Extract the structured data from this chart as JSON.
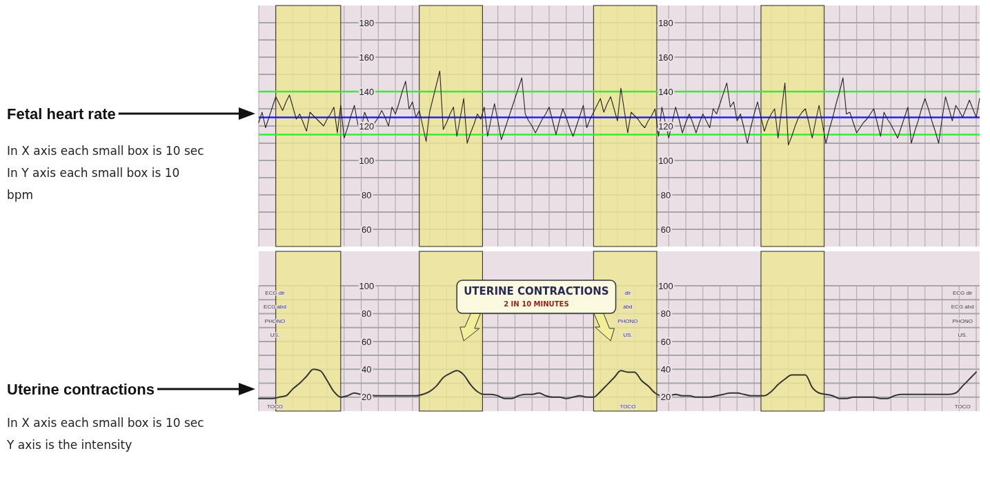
{
  "chart_data": [
    {
      "type": "line",
      "ylabel": "Fetal heart rate",
      "annotations": [
        "In X axis each small box is 10 sec",
        "In Y axis each small box is 10 bpm"
      ],
      "categories": [
        null,
        null,
        null,
        null,
        null,
        null,
        null,
        null,
        null,
        null,
        null,
        null,
        null,
        null,
        null,
        null,
        null,
        null,
        null,
        null,
        null,
        null,
        null,
        null,
        null,
        null,
        null,
        null,
        null,
        null,
        null,
        null,
        null,
        null,
        null,
        null,
        null,
        null,
        null,
        null,
        null,
        null,
        null,
        null,
        null,
        null,
        null,
        null,
        null,
        null,
        null,
        null,
        null,
        null,
        null,
        null,
        null,
        null,
        null,
        null,
        null,
        null,
        null,
        null,
        null,
        null,
        null,
        null,
        null,
        null,
        null,
        null,
        null,
        null,
        null,
        null,
        null,
        null,
        null,
        null,
        null,
        null,
        null,
        null,
        null,
        null,
        null,
        null,
        null,
        null,
        null,
        null,
        null,
        null,
        null,
        null,
        null,
        null,
        null,
        null,
        null,
        null,
        null,
        null,
        null,
        null,
        null,
        null,
        null,
        null,
        null,
        null,
        null,
        null,
        null,
        null,
        null,
        null,
        null,
        null,
        null,
        null,
        null,
        null,
        null,
        null,
        null,
        null,
        null,
        null,
        null,
        null,
        null,
        null,
        null,
        null,
        null,
        null,
        null,
        null,
        null,
        null,
        null,
        null,
        null,
        null,
        null,
        null,
        null,
        null,
        null,
        null,
        null,
        null,
        null,
        null,
        null,
        null,
        null,
        null,
        null,
        null,
        null,
        null,
        null,
        null,
        null,
        null,
        null,
        null,
        null,
        null,
        null,
        null,
        null,
        null,
        null,
        null,
        null,
        null,
        null,
        null,
        null,
        null,
        null,
        null,
        null,
        null,
        null,
        null,
        null,
        null,
        null,
        null,
        null,
        null,
        null,
        null,
        null,
        null,
        null,
        null,
        null,
        null,
        null,
        null,
        null,
        null,
        null,
        null,
        null,
        null
      ],
      "ylim": [
        50,
        190
      ],
      "tick_labels": "y",
      "grid": true,
      "yticks": [
        60,
        {
          "value": 70,
          "label": null
        },
        80,
        {
          "value": 90,
          "label": null
        },
        100,
        {
          "value": 110,
          "label": null
        },
        120,
        {
          "value": 130,
          "label": null
        },
        140,
        {
          "value": 150,
          "label": null
        },
        160,
        {
          "value": 170,
          "label": null
        },
        180
      ],
      "y2lim": [
        50,
        190
      ],
      "y2ticks": [
        60,
        80,
        100,
        120,
        140,
        160,
        180
      ],
      "ref_lines": [
        {
          "axis": "y",
          "value": 140,
          "color": "#33ee33"
        },
        {
          "axis": "y",
          "value": 125,
          "color": "#1f1fff"
        },
        {
          "axis": "y",
          "value": 115,
          "color": "#33ee33"
        }
      ],
      "series": [
        {
          "color": "#222222",
          "values": [
            122,
            128,
            119,
            125,
            131,
            137,
            133,
            129,
            134,
            138,
            131,
            124,
            127,
            122,
            117,
            128,
            126,
            124,
            122,
            120,
            124,
            127,
            131,
            116,
            132,
            113,
            119,
            126,
            132,
            121,
            119,
            128,
            123,
            118,
            122,
            125,
            129,
            125,
            120,
            131,
            127,
            133,
            140,
            146,
            130,
            134,
            125,
            129,
            120,
            111,
            128,
            136,
            144,
            152,
            118,
            122,
            127,
            131,
            114,
            125,
            136,
            110,
            116,
            121,
            127,
            124,
            131,
            114,
            124,
            133,
            123,
            112,
            118,
            124,
            130,
            136,
            142,
            148,
            127,
            123,
            120,
            116,
            120,
            124,
            127,
            131,
            123,
            115,
            123,
            130,
            125,
            119,
            114,
            120,
            126,
            132,
            119,
            124,
            128,
            132,
            136,
            128,
            133,
            137,
            130,
            123,
            142,
            129,
            116,
            128,
            126,
            124,
            121,
            119,
            123,
            126,
            130,
            114,
            131,
            122,
            113,
            122,
            131,
            124,
            116,
            122,
            127,
            122,
            116,
            122,
            127,
            123,
            119,
            130,
            127,
            133,
            139,
            145,
            131,
            134,
            123,
            127,
            119,
            110,
            119,
            127,
            134,
            125,
            117,
            123,
            127,
            130,
            113,
            129,
            145,
            109,
            114,
            120,
            125,
            128,
            130,
            122,
            113,
            123,
            132,
            121,
            110,
            118,
            125,
            133,
            140,
            148,
            127,
            128,
            122,
            116,
            119,
            122,
            124,
            127,
            130,
            122,
            114,
            128,
            124,
            121,
            117,
            113,
            119,
            125,
            131,
            110,
            117,
            123,
            130,
            136,
            130,
            123,
            117,
            110,
            124,
            137,
            130,
            123,
            132,
            129,
            125,
            130,
            135,
            130,
            125,
            136
          ]
        }
      ]
    },
    {
      "type": "line",
      "ylabel": "Uterine contractions",
      "annotations": [
        "In X axis each small box is 10 sec",
        "Y axis is the intensity",
        "UTERINE CONTRACTIONS",
        "2 IN 10 MINUTES",
        "ECG dir",
        "ECG abd",
        "PHONO",
        "US.",
        "TOCO",
        "dir",
        "abd",
        "PHONO",
        "US.",
        "TOCO",
        "ECG dir",
        "ECG abd",
        "PHONO",
        "US.",
        "TOCO"
      ],
      "categories": [
        null,
        null,
        null,
        null,
        null,
        null,
        null,
        null,
        null,
        null,
        null,
        null,
        null,
        null,
        null,
        null,
        null,
        null,
        null,
        null,
        null,
        null,
        null,
        null,
        null,
        null,
        null,
        null,
        null,
        null,
        null,
        null,
        null,
        null,
        null,
        null,
        null,
        null,
        null,
        null,
        null,
        null,
        null,
        null,
        null,
        null,
        null,
        null,
        null,
        null,
        null,
        null,
        null,
        null,
        null,
        null,
        null,
        null,
        null,
        null,
        null,
        null,
        null,
        null,
        null,
        null,
        null,
        null,
        null,
        null,
        null,
        null,
        null,
        null,
        null,
        null,
        null,
        null,
        null,
        null,
        null,
        null,
        null,
        null,
        null,
        null,
        null,
        null,
        null,
        null,
        null,
        null,
        null,
        null,
        null,
        null,
        null,
        null,
        null,
        null,
        null,
        null,
        null,
        null,
        null,
        null
      ],
      "ylim": [
        10,
        100
      ],
      "tick_labels": "y",
      "grid": true,
      "yticks": [
        20,
        {
          "value": 30,
          "label": null
        },
        40,
        {
          "value": 50,
          "label": null
        },
        60,
        {
          "value": 70,
          "label": null
        },
        80,
        {
          "value": 90,
          "label": null
        },
        100
      ],
      "y2lim": [
        10,
        100
      ],
      "y2ticks": [
        20,
        40,
        60,
        80,
        100
      ],
      "series": [
        {
          "color": "#333333",
          "values": [
            19,
            19,
            19,
            20,
            21,
            26,
            30,
            35,
            40,
            39,
            32,
            24,
            20,
            21,
            23,
            22,
            22,
            21,
            21,
            21,
            21,
            21,
            21,
            21,
            22,
            24,
            28,
            34,
            37,
            39,
            36,
            29,
            24,
            22,
            22,
            21,
            19,
            19,
            21,
            22,
            22,
            23,
            21,
            20,
            20,
            19,
            20,
            21,
            20,
            20,
            24,
            29,
            34,
            39,
            38,
            38,
            32,
            28,
            23,
            21,
            21,
            22,
            21,
            21,
            20,
            20,
            20,
            21,
            22,
            23,
            23,
            22,
            21,
            21,
            21,
            24,
            29,
            33,
            36,
            36,
            36,
            27,
            23,
            22,
            21,
            19,
            19,
            20,
            20,
            20,
            20,
            19,
            19,
            21,
            22,
            22,
            22,
            22,
            22,
            22,
            22,
            22,
            23,
            28,
            33,
            38
          ]
        }
      ]
    }
  ]
}
